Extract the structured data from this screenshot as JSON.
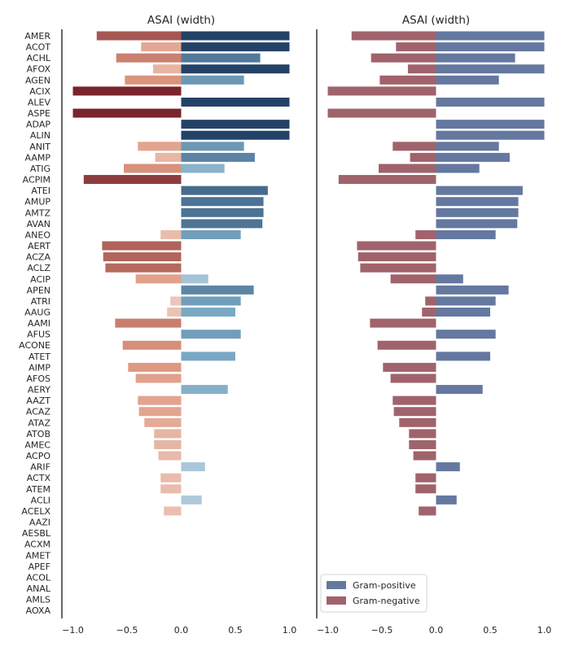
{
  "chart_data": [
    {
      "type": "bar",
      "orientation": "horizontal",
      "title": "ASAI (width)",
      "xlim": [
        -1.1,
        1.1
      ],
      "xticks": [
        "−1.0",
        "−0.5",
        "0.0",
        "0.5",
        "1.0"
      ],
      "xtick_values": [
        -1.0,
        -0.5,
        0.0,
        0.5,
        1.0
      ],
      "color_scale": "diverging red (negative) to blue (positive), intensity by magnitude",
      "categories": [
        "AMER",
        "ACOT",
        "ACHL",
        "AFOX",
        "AGEN",
        "ACIX",
        "ALEV",
        "ASPE",
        "ADAP",
        "ALIN",
        "ANIT",
        "AAMP",
        "ATIG",
        "ACPIM",
        "ATEI",
        "AMUP",
        "AMTZ",
        "AVAN",
        "ANEO",
        "AERT",
        "ACZA",
        "ACLZ",
        "ACIP",
        "APEN",
        "ATRI",
        "AAUG",
        "AAMI",
        "AFUS",
        "ACONE",
        "ATET",
        "AIMP",
        "AFOS",
        "AERY",
        "AAZT",
        "ACAZ",
        "ATAZ",
        "ATOB",
        "AMEC",
        "ACPO",
        "ARIF",
        "ACTX",
        "ATEM",
        "ACLI",
        "ACELX",
        "AAZI",
        "AESBL",
        "ACXM",
        "AMET",
        "APEF",
        "ACOL",
        "ANAL",
        "AMLS",
        "AOXA"
      ],
      "series": [
        {
          "name": "",
          "negative": [
            -0.78,
            -0.37,
            -0.6,
            -0.26,
            -0.52,
            -1.0,
            null,
            -1.0,
            null,
            null,
            -0.4,
            -0.24,
            -0.53,
            -0.9,
            null,
            null,
            null,
            null,
            -0.19,
            -0.73,
            -0.72,
            -0.7,
            -0.42,
            null,
            -0.1,
            -0.13,
            -0.61,
            null,
            -0.54,
            null,
            -0.49,
            -0.42,
            null,
            -0.4,
            -0.39,
            -0.34,
            -0.25,
            -0.25,
            -0.21,
            null,
            -0.19,
            -0.19,
            null,
            -0.16,
            null,
            null,
            null,
            null,
            null,
            null,
            null,
            null,
            null
          ],
          "positive": [
            1.0,
            1.0,
            0.73,
            1.0,
            0.58,
            null,
            1.0,
            null,
            1.0,
            1.0,
            0.58,
            0.68,
            0.4,
            null,
            0.8,
            0.76,
            0.76,
            0.75,
            0.55,
            null,
            null,
            null,
            0.25,
            0.67,
            0.55,
            0.5,
            null,
            0.55,
            null,
            0.5,
            null,
            null,
            0.43,
            null,
            null,
            null,
            null,
            null,
            null,
            0.22,
            null,
            null,
            0.19,
            null,
            null,
            null,
            null,
            null,
            null,
            null,
            null,
            null,
            null
          ]
        }
      ]
    },
    {
      "type": "bar",
      "orientation": "horizontal",
      "title": "ASAI (width)",
      "xlim": [
        -1.1,
        1.1
      ],
      "xticks": [
        "−1.0",
        "−0.5",
        "0.0",
        "0.5",
        "1.0"
      ],
      "xtick_values": [
        -1.0,
        -0.5,
        0.0,
        0.5,
        1.0
      ],
      "legend": {
        "position": "lower-left",
        "entries": [
          "Gram-positive",
          "Gram-negative"
        ]
      },
      "colors": {
        "gram_positive": "#6478a0",
        "gram_negative": "#a0636c"
      },
      "categories": [
        "AMER",
        "ACOT",
        "ACHL",
        "AFOX",
        "AGEN",
        "ACIX",
        "ALEV",
        "ASPE",
        "ADAP",
        "ALIN",
        "ANIT",
        "AAMP",
        "ATIG",
        "ACPIM",
        "ATEI",
        "AMUP",
        "AMTZ",
        "AVAN",
        "ANEO",
        "AERT",
        "ACZA",
        "ACLZ",
        "ACIP",
        "APEN",
        "ATRI",
        "AAUG",
        "AAMI",
        "AFUS",
        "ACONE",
        "ATET",
        "AIMP",
        "AFOS",
        "AERY",
        "AAZT",
        "ACAZ",
        "ATAZ",
        "ATOB",
        "AMEC",
        "ACPO",
        "ARIF",
        "ACTX",
        "ATEM",
        "ACLI",
        "ACELX",
        "AAZI",
        "AESBL",
        "ACXM",
        "AMET",
        "APEF",
        "ACOL",
        "ANAL",
        "AMLS",
        "AOXA"
      ],
      "series": [
        {
          "name": "Gram-positive",
          "values": [
            1.0,
            1.0,
            0.73,
            1.0,
            0.58,
            null,
            1.0,
            null,
            1.0,
            1.0,
            0.58,
            0.68,
            0.4,
            null,
            0.8,
            0.76,
            0.76,
            0.75,
            0.55,
            null,
            null,
            null,
            0.25,
            0.67,
            0.55,
            0.5,
            null,
            0.55,
            null,
            0.5,
            null,
            null,
            0.43,
            null,
            null,
            null,
            null,
            null,
            null,
            0.22,
            null,
            null,
            0.19,
            null,
            null,
            null,
            null,
            null,
            null,
            null,
            null,
            null,
            null
          ]
        },
        {
          "name": "Gram-negative",
          "values": [
            -0.78,
            -0.37,
            -0.6,
            -0.26,
            -0.52,
            -1.0,
            null,
            -1.0,
            null,
            null,
            -0.4,
            -0.24,
            -0.53,
            -0.9,
            null,
            null,
            null,
            null,
            -0.19,
            -0.73,
            -0.72,
            -0.7,
            -0.42,
            null,
            -0.1,
            -0.13,
            -0.61,
            null,
            -0.54,
            null,
            -0.49,
            -0.42,
            null,
            -0.4,
            -0.39,
            -0.34,
            -0.25,
            -0.25,
            -0.21,
            null,
            -0.19,
            -0.19,
            null,
            -0.16,
            null,
            null,
            null,
            null,
            null,
            null,
            null,
            null,
            null
          ]
        }
      ]
    }
  ]
}
